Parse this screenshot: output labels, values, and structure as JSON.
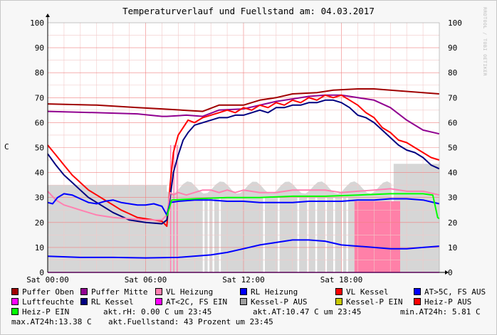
{
  "chart_data": {
    "type": "line",
    "title": "Temperaturverlauf und Fuellstand am: 04.03.2017",
    "ylabel": "C",
    "ylim": [
      0,
      100
    ],
    "yticks": [
      0,
      10,
      20,
      30,
      40,
      50,
      60,
      70,
      80,
      90,
      100
    ],
    "xlim": [
      0,
      24
    ],
    "xticks": [
      {
        "x": 0,
        "label": "Sat 00:00"
      },
      {
        "x": 6,
        "label": "Sat 06:00"
      },
      {
        "x": 12,
        "label": "Sat 12:00"
      },
      {
        "x": 18,
        "label": "Sat 18:00"
      }
    ],
    "watermark": "RRDTOOL / TOBI OETIKER",
    "series": [
      {
        "name": "Puffer Oben",
        "color": "#a00000",
        "kind": "line",
        "points": [
          [
            0,
            67.5
          ],
          [
            3,
            67
          ],
          [
            5.5,
            66
          ],
          [
            7,
            65.5
          ],
          [
            9.5,
            64.5
          ],
          [
            10.5,
            67
          ],
          [
            12,
            67
          ],
          [
            13,
            69
          ],
          [
            14,
            70
          ],
          [
            15,
            71.5
          ],
          [
            16.5,
            72
          ],
          [
            17.5,
            73
          ],
          [
            19,
            73.5
          ],
          [
            20,
            73.5
          ],
          [
            21,
            73
          ],
          [
            24,
            71.5
          ]
        ]
      },
      {
        "name": "Puffer Mitte",
        "color": "#900090",
        "kind": "line",
        "points": [
          [
            0,
            64.5
          ],
          [
            3,
            64
          ],
          [
            5.5,
            63.5
          ],
          [
            7,
            62.5
          ],
          [
            7.3,
            62.5
          ],
          [
            8.5,
            63
          ],
          [
            9.5,
            62.5
          ],
          [
            10.5,
            65
          ],
          [
            12,
            65.5
          ],
          [
            13,
            67
          ],
          [
            14,
            68.5
          ],
          [
            15,
            69.5
          ],
          [
            16,
            70.5
          ],
          [
            17,
            71
          ],
          [
            18,
            71
          ],
          [
            19,
            70
          ],
          [
            20,
            69
          ],
          [
            21,
            66
          ],
          [
            22,
            61
          ],
          [
            23,
            57
          ],
          [
            24,
            55.5
          ]
        ]
      },
      {
        "name": "VL Kessel",
        "color": "#ff0000",
        "kind": "line",
        "points": [
          [
            0,
            51
          ],
          [
            0.5,
            47
          ],
          [
            1,
            43
          ],
          [
            1.5,
            39
          ],
          [
            2,
            36
          ],
          [
            2.5,
            33
          ],
          [
            3,
            31
          ],
          [
            3.5,
            29
          ],
          [
            4,
            27
          ],
          [
            4.5,
            25
          ],
          [
            5,
            23.5
          ],
          [
            5.5,
            22
          ],
          [
            6,
            21.5
          ],
          [
            7,
            20.5
          ],
          [
            7.3,
            18.5
          ],
          [
            7.5,
            35
          ],
          [
            7.7,
            48
          ],
          [
            8,
            55
          ],
          [
            8.3,
            58
          ],
          [
            8.6,
            61
          ],
          [
            9,
            60
          ],
          [
            9.5,
            62
          ],
          [
            10,
            63
          ],
          [
            10.5,
            64
          ],
          [
            11,
            65
          ],
          [
            11.5,
            64
          ],
          [
            12,
            66
          ],
          [
            12.5,
            65
          ],
          [
            13,
            67
          ],
          [
            13.5,
            66
          ],
          [
            14,
            68
          ],
          [
            14.5,
            67
          ],
          [
            15,
            69
          ],
          [
            15.5,
            68
          ],
          [
            16,
            70
          ],
          [
            16.5,
            69
          ],
          [
            17,
            71
          ],
          [
            17.5,
            70
          ],
          [
            18,
            71
          ],
          [
            18.5,
            69
          ],
          [
            19,
            67
          ],
          [
            19.5,
            64
          ],
          [
            20,
            62
          ],
          [
            20.5,
            58
          ],
          [
            21,
            56
          ],
          [
            21.5,
            53
          ],
          [
            22,
            52
          ],
          [
            22.5,
            50
          ],
          [
            23,
            48
          ],
          [
            23.5,
            46
          ],
          [
            24,
            45
          ]
        ]
      },
      {
        "name": "RL Kessel",
        "color": "#000080",
        "kind": "line",
        "points": [
          [
            0,
            47.5
          ],
          [
            0.5,
            43
          ],
          [
            1,
            39
          ],
          [
            1.5,
            36
          ],
          [
            2,
            33
          ],
          [
            2.5,
            30
          ],
          [
            3,
            28
          ],
          [
            3.5,
            26
          ],
          [
            4,
            24
          ],
          [
            4.5,
            22.5
          ],
          [
            5,
            21
          ],
          [
            5.5,
            20.5
          ],
          [
            6,
            20
          ],
          [
            7,
            19.5
          ],
          [
            7.3,
            21
          ],
          [
            7.5,
            30
          ],
          [
            7.7,
            40
          ],
          [
            8,
            47
          ],
          [
            8.3,
            53
          ],
          [
            8.6,
            56
          ],
          [
            9,
            59
          ],
          [
            9.5,
            60
          ],
          [
            10,
            61
          ],
          [
            10.5,
            62
          ],
          [
            11,
            62
          ],
          [
            11.5,
            63
          ],
          [
            12,
            63
          ],
          [
            12.5,
            64
          ],
          [
            13,
            65
          ],
          [
            13.5,
            64
          ],
          [
            14,
            66
          ],
          [
            14.5,
            66
          ],
          [
            15,
            67
          ],
          [
            15.5,
            67
          ],
          [
            16,
            68
          ],
          [
            16.5,
            68
          ],
          [
            17,
            69
          ],
          [
            17.5,
            69
          ],
          [
            18,
            68
          ],
          [
            18.5,
            66
          ],
          [
            19,
            63
          ],
          [
            19.5,
            62
          ],
          [
            20,
            60
          ],
          [
            20.5,
            57
          ],
          [
            21,
            54
          ],
          [
            21.5,
            51
          ],
          [
            22,
            49
          ],
          [
            22.5,
            48
          ],
          [
            23,
            46
          ],
          [
            23.5,
            43
          ],
          [
            24,
            41.5
          ]
        ]
      },
      {
        "name": "VL Heizung",
        "color": "#ff80b0",
        "kind": "line",
        "points": [
          [
            0,
            32.5
          ],
          [
            0.5,
            29
          ],
          [
            1,
            27
          ],
          [
            1.5,
            26
          ],
          [
            2,
            25
          ],
          [
            2.5,
            24
          ],
          [
            3,
            23
          ],
          [
            4,
            22
          ],
          [
            5,
            21.5
          ],
          [
            6,
            21
          ],
          [
            7,
            21
          ],
          [
            7.3,
            23
          ],
          [
            7.5,
            32
          ],
          [
            7.7,
            31
          ],
          [
            8,
            32
          ],
          [
            8.5,
            31
          ],
          [
            9,
            32
          ],
          [
            9.5,
            33
          ],
          [
            10,
            33
          ],
          [
            10.5,
            32
          ],
          [
            11,
            33
          ],
          [
            11.5,
            32
          ],
          [
            12,
            33
          ],
          [
            13,
            32
          ],
          [
            14,
            32
          ],
          [
            15,
            33
          ],
          [
            16,
            33
          ],
          [
            17,
            33
          ],
          [
            18,
            32
          ],
          [
            19,
            32.5
          ],
          [
            20,
            33
          ],
          [
            21,
            33.5
          ],
          [
            22,
            32.5
          ],
          [
            23,
            32.5
          ],
          [
            24,
            31
          ]
        ]
      },
      {
        "name": "RL Heizung",
        "color": "#0000ff",
        "kind": "line",
        "points": [
          [
            0,
            28
          ],
          [
            0.3,
            27.5
          ],
          [
            0.6,
            30
          ],
          [
            1,
            31.5
          ],
          [
            1.5,
            31
          ],
          [
            2,
            29.5
          ],
          [
            2.5,
            28
          ],
          [
            3,
            27.5
          ],
          [
            3.5,
            28.5
          ],
          [
            4,
            29
          ],
          [
            4.5,
            28
          ],
          [
            5,
            27.5
          ],
          [
            5.5,
            27
          ],
          [
            6,
            27
          ],
          [
            6.5,
            27.5
          ],
          [
            7,
            26.5
          ],
          [
            7.3,
            23
          ],
          [
            7.5,
            28
          ],
          [
            8,
            28.5
          ],
          [
            9,
            29
          ],
          [
            10,
            29
          ],
          [
            11,
            28.5
          ],
          [
            12,
            28.5
          ],
          [
            13,
            28
          ],
          [
            14,
            28
          ],
          [
            15,
            28
          ],
          [
            16,
            28.5
          ],
          [
            17,
            28.5
          ],
          [
            18,
            28.5
          ],
          [
            19,
            29
          ],
          [
            20,
            29
          ],
          [
            21,
            29.5
          ],
          [
            22,
            29.5
          ],
          [
            23,
            29
          ],
          [
            24,
            27.5
          ]
        ]
      },
      {
        "name": "Luftfeuchte",
        "color": "#ff00ff",
        "kind": "line",
        "points": [
          [
            0,
            0
          ],
          [
            24,
            0
          ]
        ]
      },
      {
        "name": "AT>5C, FS AUS",
        "color": "#0000ff",
        "kind": "line",
        "points": [
          [
            0,
            6.5
          ],
          [
            2,
            6
          ],
          [
            4,
            6
          ],
          [
            6,
            5.8
          ],
          [
            8,
            6
          ],
          [
            10,
            7
          ],
          [
            11,
            8
          ],
          [
            12,
            9.5
          ],
          [
            13,
            11
          ],
          [
            14,
            12
          ],
          [
            15,
            13
          ],
          [
            16,
            13
          ],
          [
            17,
            12.5
          ],
          [
            18,
            11
          ],
          [
            19,
            10.5
          ],
          [
            20,
            10
          ],
          [
            21,
            9.5
          ],
          [
            22,
            9.5
          ],
          [
            23,
            10
          ],
          [
            24,
            10.5
          ]
        ]
      },
      {
        "name": "Heiz-P EIN",
        "color": "#00ff00",
        "kind": "line",
        "points": [
          [
            7.3,
            22.5
          ],
          [
            7.6,
            29
          ],
          [
            9,
            29.5
          ],
          [
            11,
            30
          ],
          [
            13,
            30
          ],
          [
            15,
            30.5
          ],
          [
            17,
            30.5
          ],
          [
            19,
            31
          ],
          [
            21,
            31.5
          ],
          [
            23,
            31.5
          ],
          [
            23.6,
            31
          ],
          [
            23.9,
            22
          ],
          [
            24,
            21.5
          ]
        ]
      },
      {
        "name": "AT<2C, FS EIN",
        "color": "#ff00ff",
        "kind": "area",
        "points": []
      },
      {
        "name": "Kessel-P AUS",
        "color": "#a0a0a0",
        "kind": "area",
        "points": []
      },
      {
        "name": "Kessel-P EIN",
        "color": "#c8c800",
        "kind": "area",
        "points": []
      },
      {
        "name": "Heiz-P AUS",
        "color": "#ff0000",
        "kind": "area",
        "points": []
      }
    ]
  },
  "info": {
    "humidity": "akt.rH: 0.00 C um 23:45",
    "at_now": "akt.AT:10.47 C um 23:45",
    "at_min": "min.AT24h: 5.81 C",
    "at_max": "max.AT24h:13.38 C",
    "level": "akt.Fuellstand:   43 Prozent um 23:45"
  }
}
